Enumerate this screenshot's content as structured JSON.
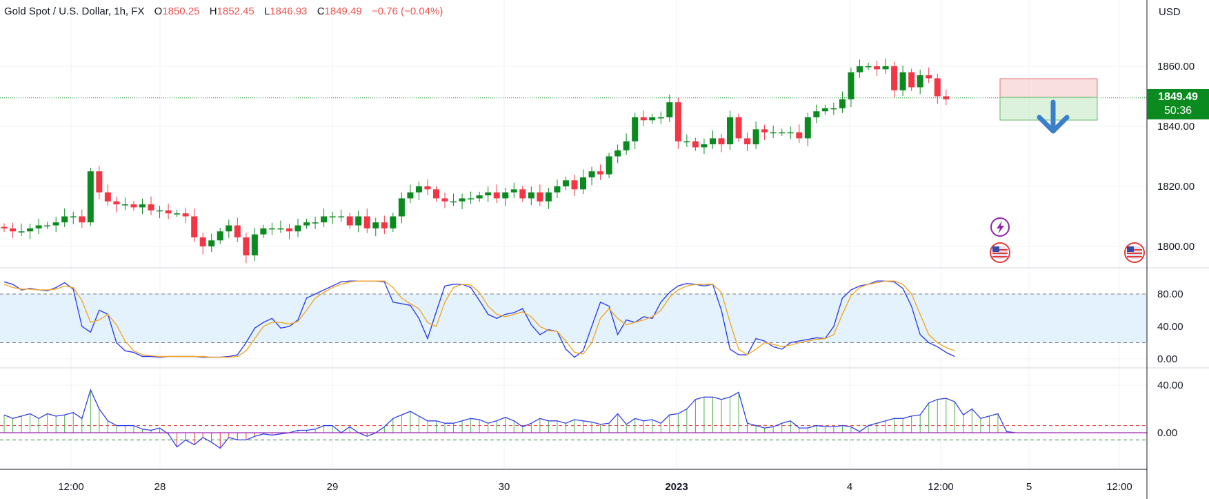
{
  "legend": {
    "symbol": "Gold Spot / U.S. Dollar, 1h, FX",
    "open_label": "O",
    "open": "1850.25",
    "high_label": "H",
    "high": "1852.45",
    "low_label": "L",
    "low": "1846.93",
    "close_label": "C",
    "close": "1849.49",
    "change": "−0.76 (−0.04%)"
  },
  "current_price": {
    "price": "1849.49",
    "countdown": "50:36"
  },
  "currency": "USD",
  "colors": {
    "up": "#0b8a1f",
    "down": "#f23645",
    "stoch_k": "#2e3ee8",
    "stoch_d": "#f5a623",
    "hist_pos": "#4caf50",
    "hist_neg": "#e53935",
    "band": "#e3f2fd",
    "zero_line": "#9c27b0"
  },
  "icons": [
    "lightning-icon",
    "us-flag-icon",
    "us-flag-icon",
    "down-arrow-icon"
  ],
  "chart_data": [
    {
      "type": "candlestick",
      "title": "Gold Spot / U.S. Dollar, 1h, FX",
      "y_axis_ticks": [
        "1860.00",
        "1840.00",
        "1820.00",
        "1800.00"
      ],
      "ylim": [
        1793,
        1879
      ],
      "x_tick_labels": [
        "12:00",
        "28",
        "29",
        "30",
        "2023",
        "4",
        "12:00",
        "5",
        "12:00"
      ],
      "candles_close": [
        1806,
        1805,
        1805,
        1806,
        1807,
        1807,
        1808,
        1810,
        1810,
        1808,
        1825,
        1818,
        1815,
        1814,
        1814,
        1813,
        1814,
        1812,
        1812,
        1811,
        1811,
        1810,
        1803,
        1800,
        1802,
        1805,
        1807,
        1803,
        1797,
        1804,
        1806,
        1806,
        1806,
        1805,
        1807,
        1808,
        1808,
        1810,
        1810,
        1810,
        1807,
        1810,
        1806,
        1808,
        1806,
        1810,
        1816,
        1818,
        1820,
        1819,
        1816,
        1815,
        1815,
        1816,
        1816,
        1817,
        1818,
        1816,
        1818,
        1819,
        1816,
        1818,
        1815,
        1818,
        1820,
        1822,
        1819,
        1823,
        1825,
        1824,
        1830,
        1832,
        1835,
        1843,
        1842,
        1843,
        1843,
        1848,
        1835,
        1835,
        1833,
        1834,
        1836,
        1834,
        1843,
        1836,
        1834,
        1839,
        1838,
        1838,
        1838,
        1838,
        1836,
        1843,
        1845,
        1846,
        1846,
        1849,
        1858,
        1860,
        1860,
        1859,
        1860,
        1852,
        1858,
        1853,
        1857,
        1856,
        1850,
        1849
      ],
      "prices_note": "per-bar closes in USD",
      "last_close": 1849.49,
      "position_tool": {
        "entry": 1849.5,
        "target": 1842,
        "stop": 1856
      }
    },
    {
      "type": "line",
      "title": "",
      "y_axis_ticks": [
        "80.00",
        "40.00",
        "0.00"
      ],
      "ylim": [
        0,
        100
      ],
      "bands": [
        20,
        80
      ],
      "series": [
        {
          "values": [
            95,
            92,
            85,
            87,
            85,
            84,
            88,
            94,
            86,
            40,
            33,
            60,
            55,
            20,
            10,
            8,
            3,
            3,
            2,
            3,
            3,
            3,
            3,
            2,
            2,
            2,
            3,
            5,
            20,
            38,
            45,
            50,
            38,
            40,
            48,
            75,
            80,
            85,
            90,
            95,
            96,
            96,
            96,
            96,
            95,
            70,
            68,
            66,
            50,
            25,
            58,
            90,
            92,
            92,
            88,
            72,
            55,
            50,
            55,
            57,
            62,
            42,
            30,
            36,
            34,
            12,
            2,
            10,
            40,
            70,
            65,
            30,
            48,
            45,
            52,
            50,
            70,
            82,
            90,
            93,
            92,
            90,
            92,
            60,
            12,
            5,
            5,
            25,
            22,
            15,
            12,
            20,
            22,
            24,
            26,
            25,
            40,
            75,
            85,
            90,
            92,
            96,
            96,
            95,
            87,
            65,
            30,
            20,
            15,
            8,
            3
          ]
        },
        {
          "values": [
            92,
            88,
            86,
            86,
            85,
            85,
            86,
            90,
            88,
            72,
            45,
            48,
            55,
            42,
            22,
            10,
            5,
            4,
            3,
            3,
            3,
            3,
            3,
            3,
            2,
            2,
            2,
            3,
            10,
            25,
            40,
            45,
            45,
            43,
            46,
            60,
            75,
            82,
            88,
            92,
            95,
            96,
            96,
            96,
            96,
            88,
            75,
            68,
            62,
            45,
            40,
            70,
            88,
            92,
            91,
            82,
            65,
            55,
            52,
            55,
            58,
            52,
            40,
            35,
            34,
            22,
            8,
            6,
            20,
            50,
            62,
            50,
            42,
            45,
            48,
            52,
            60,
            76,
            85,
            90,
            92,
            92,
            92,
            82,
            45,
            12,
            5,
            12,
            20,
            18,
            15,
            17,
            20,
            22,
            24,
            25,
            30,
            55,
            78,
            88,
            92,
            94,
            96,
            96,
            92,
            80,
            55,
            30,
            20,
            14,
            10
          ]
        }
      ]
    },
    {
      "type": "bar",
      "title": "",
      "y_axis_ticks": [
        "40.00",
        "0.00"
      ],
      "ylim": [
        -13,
        45
      ],
      "bands": [
        -6,
        6
      ],
      "values": [
        15,
        12,
        14,
        16,
        12,
        16,
        14,
        15,
        17,
        12,
        36,
        20,
        10,
        6,
        6,
        6,
        3,
        2,
        4,
        -1,
        -12,
        -6,
        -10,
        -4,
        -8,
        -13,
        -4,
        -6,
        -6,
        -3,
        -1,
        -2,
        -1,
        0,
        2,
        2,
        3,
        6,
        6,
        0,
        5,
        0,
        -3,
        0,
        5,
        12,
        15,
        18,
        14,
        10,
        10,
        8,
        8,
        10,
        12,
        11,
        8,
        10,
        13,
        10,
        5,
        8,
        12,
        10,
        10,
        8,
        11,
        10,
        9,
        7,
        8,
        16,
        7,
        12,
        10,
        11,
        8,
        15,
        16,
        20,
        28,
        30,
        30,
        28,
        30,
        34,
        8,
        6,
        4,
        5,
        8,
        10,
        4,
        4,
        6,
        5,
        5,
        6,
        5,
        1,
        6,
        8,
        10,
        12,
        12,
        14,
        15,
        25,
        28,
        29,
        26,
        15,
        20,
        12,
        14,
        16,
        1,
        0
      ]
    }
  ]
}
